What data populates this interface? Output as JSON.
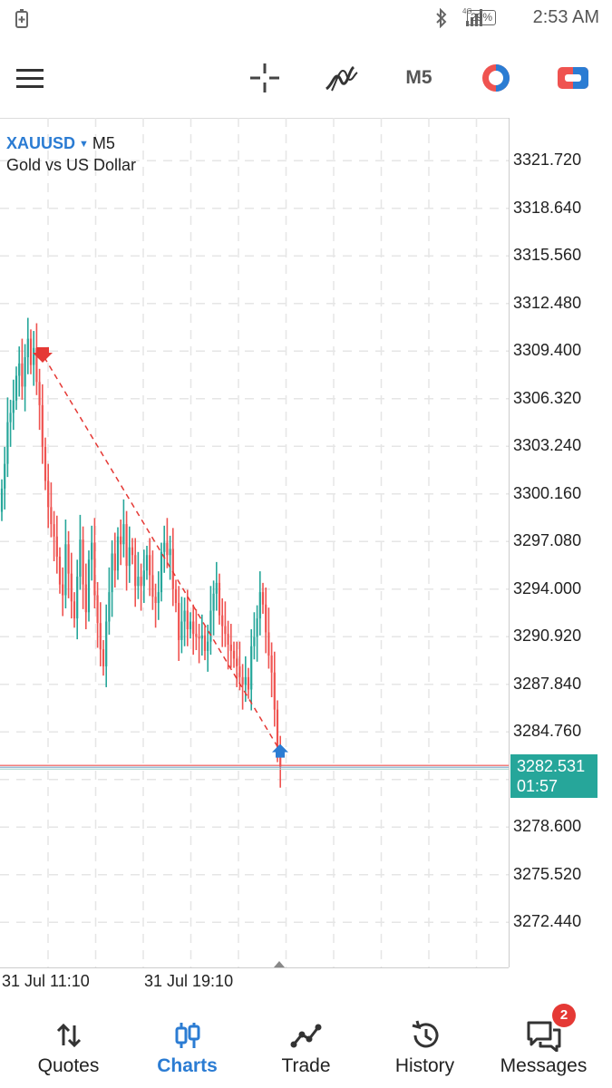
{
  "status_bar": {
    "time": "2:53 AM",
    "battery": "29%",
    "network": "4G+",
    "icons": [
      "battery-saver-icon",
      "bluetooth-icon",
      "signal-icon",
      "battery-icon"
    ]
  },
  "toolbar": {
    "menu_icon": "hamburger-menu-icon",
    "crosshair_icon": "crosshair-icon",
    "indicators_icon": "indicators-icon",
    "timeframe": "M5",
    "icons": [
      "crosshair-icon",
      "indicators-icon",
      "objects-icon",
      "trade-panel-icon"
    ]
  },
  "chart": {
    "symbol": "XAUUSD",
    "timeframe": "M5",
    "description": "Gold vs US Dollar",
    "current_price": "3282.531",
    "countdown": "01:57",
    "price_scale": [
      "3321.720",
      "3318.640",
      "3315.560",
      "3312.480",
      "3309.400",
      "3306.320",
      "3303.240",
      "3300.160",
      "3297.080",
      "3294.000",
      "3290.920",
      "3287.840",
      "3284.760",
      "3278.600",
      "3275.520",
      "3272.440"
    ],
    "time_labels": [
      "31 Jul 11:10",
      "31 Jul 19:10"
    ],
    "colors": {
      "bull": "#26a69a",
      "bear": "#ef5350",
      "grid": "#e6e6e6",
      "accent": "#2b7cd3"
    }
  },
  "chart_data": {
    "type": "candlestick",
    "symbol": "XAUUSD",
    "timeframe": "M5",
    "ylim": [
      3269.4,
      3324.8
    ],
    "x_ticks": [
      "31 Jul 11:10",
      "31 Jul 19:10"
    ],
    "closes": [
      3300.5,
      3302.1,
      3304.8,
      3305.4,
      3306.2,
      3307.8,
      3308.6,
      3307.1,
      3309.0,
      3310.2,
      3308.5,
      3309.6,
      3307.4,
      3305.9,
      3303.2,
      3301.0,
      3299.3,
      3298.2,
      3297.4,
      3296.1,
      3294.3,
      3293.6,
      3296.9,
      3295.0,
      3293.2,
      3292.1,
      3294.8,
      3297.2,
      3294.3,
      3292.5,
      3295.9,
      3297.0,
      3293.6,
      3291.8,
      3290.1,
      3289.0,
      3291.9,
      3293.8,
      3296.3,
      3295.2,
      3297.4,
      3296.9,
      3298.2,
      3295.5,
      3296.7,
      3296.2,
      3294.2,
      3294.8,
      3294.2,
      3295.2,
      3296.2,
      3294.9,
      3293.5,
      3293.1,
      3293.8,
      3296.4,
      3297.0,
      3296.2,
      3296.6,
      3294.0,
      3293.1,
      3290.7,
      3291.9,
      3292.6,
      3291.4,
      3291.9,
      3291.1,
      3290.9,
      3290.8,
      3291.0,
      3290.0,
      3290.6,
      3292.6,
      3293.7,
      3294.4,
      3292.3,
      3291.6,
      3291.1,
      3290.4,
      3290.0,
      3289.5,
      3289.0,
      3288.3,
      3287.8,
      3288.3,
      3287.5,
      3290.3,
      3290.9,
      3292.1,
      3293.8,
      3293.0,
      3291.2,
      3289.7,
      3288.6,
      3286.2,
      3283.4,
      3282.5
    ],
    "annotations": {
      "sell_marker": {
        "price": 3309.0
      },
      "buy_marker": {
        "price": 3283.5
      },
      "trend_line": [
        3309.0,
        3283.5
      ],
      "current_price": 3282.531
    }
  },
  "bottom_nav": {
    "items": [
      {
        "label": "Quotes",
        "icon": "quotes-icon"
      },
      {
        "label": "Charts",
        "icon": "charts-icon"
      },
      {
        "label": "Trade",
        "icon": "trade-icon"
      },
      {
        "label": "History",
        "icon": "history-icon"
      },
      {
        "label": "Messages",
        "icon": "messages-icon"
      }
    ],
    "active": "Charts",
    "messages_badge": "2"
  }
}
